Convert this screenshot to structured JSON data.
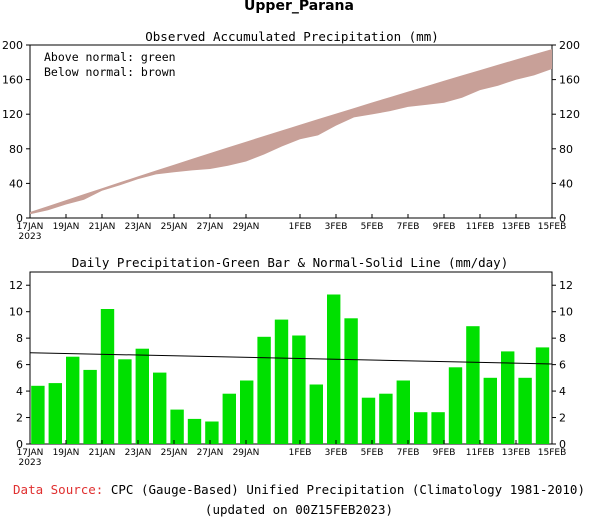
{
  "title": "Upper_Parana",
  "footer": {
    "source_label": "Data Source:",
    "source_text": "CPC (Gauge-Based) Unified Precipitation (Climatology 1981-2010)",
    "updated": "(updated on 00Z15FEB2023)"
  },
  "colors": {
    "accum_band": "#c8a098",
    "bar": "#00e000",
    "footer_source": "#e03030"
  },
  "chart_data": [
    {
      "type": "area",
      "title": "Observed Accumulated Precipitation (mm)",
      "legend": [
        "Above normal: green",
        "Below normal: brown"
      ],
      "legend_position": "top-left",
      "x_start": "17JAN",
      "x_start_year": "2023",
      "x_tick_labels": [
        "17JAN",
        "19JAN",
        "21JAN",
        "23JAN",
        "25JAN",
        "27JAN",
        "29JAN",
        "1FEB",
        "3FEB",
        "5FEB",
        "7FEB",
        "9FEB",
        "11FEB",
        "13FEB",
        "15FEB"
      ],
      "ylim": [
        0,
        200
      ],
      "y_ticks": [
        0,
        40,
        80,
        120,
        160,
        200
      ],
      "observed": [
        4.4,
        9,
        15.6,
        21.2,
        31.4,
        37.8,
        45,
        50.4,
        53,
        55,
        56.7,
        60.5,
        65.3,
        73.4,
        82.8,
        91,
        95.5,
        106.8,
        116.3,
        119.8,
        123.6,
        128.4,
        130.8,
        133.2,
        139,
        147.9,
        152.9,
        159.9,
        164.9,
        172.2
      ],
      "normal": [
        6.9,
        13.8,
        20.7,
        27.6,
        34.5,
        41.3,
        48.1,
        54.9,
        61.6,
        68.3,
        75,
        81.6,
        88.2,
        94.8,
        101.3,
        107.8,
        114.3,
        120.7,
        127.1,
        133.5,
        139.8,
        146.1,
        152.4,
        158.6,
        164.8,
        171,
        177.1,
        183.2,
        189.3,
        195.3
      ]
    },
    {
      "type": "bar",
      "title": "Daily Precipitation-Green Bar & Normal-Solid Line (mm/day)",
      "x_start": "17JAN",
      "x_start_year": "2023",
      "x_tick_labels": [
        "17JAN",
        "19JAN",
        "21JAN",
        "23JAN",
        "25JAN",
        "27JAN",
        "29JAN",
        "1FEB",
        "3FEB",
        "5FEB",
        "7FEB",
        "9FEB",
        "11FEB",
        "13FEB",
        "15FEB"
      ],
      "ylim": [
        0,
        13
      ],
      "y_ticks": [
        0,
        2,
        4,
        6,
        8,
        10,
        12
      ],
      "values": [
        4.4,
        4.6,
        6.6,
        5.6,
        10.2,
        6.4,
        7.2,
        5.4,
        2.6,
        1.9,
        1.7,
        3.8,
        4.8,
        8.1,
        9.4,
        8.2,
        4.5,
        11.3,
        9.5,
        3.5,
        3.8,
        4.8,
        2.4,
        2.4,
        5.8,
        8.9,
        5.0,
        7.0,
        5.0,
        7.3
      ],
      "normal_line": [
        6.9,
        6.05
      ]
    }
  ]
}
